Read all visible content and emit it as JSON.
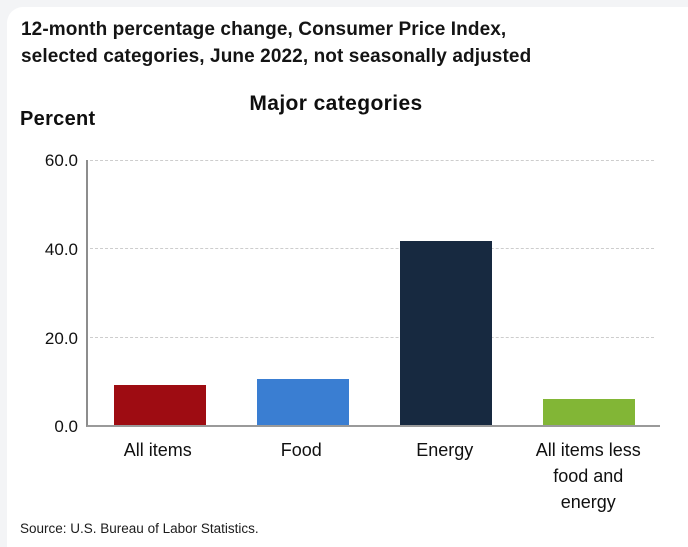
{
  "header": {
    "title_line1": "12-month percentage change, Consumer Price Index,",
    "title_line2": "selected categories, June 2022, not seasonally adjusted"
  },
  "chart_data": {
    "type": "bar",
    "title": "Major categories",
    "ylabel": "Percent",
    "categories": [
      "All items",
      "Food",
      "Energy",
      "All items less food and energy"
    ],
    "values": [
      9.1,
      10.4,
      41.6,
      5.9
    ],
    "ylim": [
      0,
      60
    ],
    "ytick_labels": [
      "60.0",
      "40.0",
      "20.0",
      "0.0"
    ],
    "grid": "horizontal-dashed",
    "legend_position": "none",
    "bar_colors": [
      "#9e0c12",
      "#3a7ed2",
      "#172940",
      "#82b636"
    ],
    "axis_color": "#9a9a9a",
    "gridline_color": "#cdcdcd"
  },
  "footer": {
    "source": "Source: U.S. Bureau of Labor Statistics."
  }
}
